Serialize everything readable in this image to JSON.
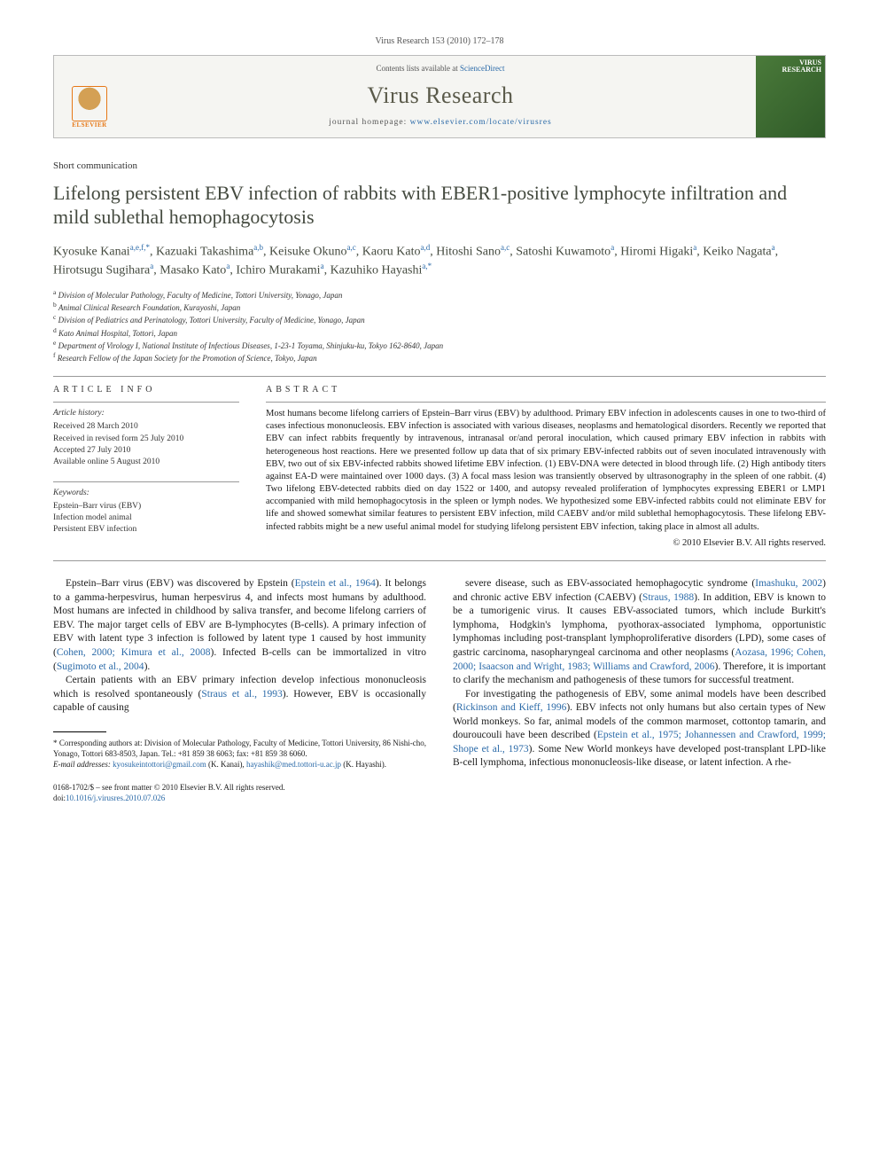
{
  "citation": "Virus Research 153 (2010) 172–178",
  "banner": {
    "contents_prefix": "Contents lists available at ",
    "contents_link": "ScienceDirect",
    "journal": "Virus Research",
    "homepage_prefix": "journal homepage: ",
    "homepage_url": "www.elsevier.com/locate/virusres",
    "publisher_name": "ELSEVIER",
    "cover_top": "VIRUS",
    "cover_bottom": "RESEARCH"
  },
  "article_type": "Short communication",
  "title": "Lifelong persistent EBV infection of rabbits with EBER1-positive lymphocyte infiltration and mild sublethal hemophagocytosis",
  "authors_html": "Kyosuke Kanai<sup>a,e,f,</sup><sup class=\"star\">*</sup>, Kazuaki Takashima<sup>a,b</sup>, Keisuke Okuno<sup>a,c</sup>, Kaoru Kato<sup>a,d</sup>, Hitoshi Sano<sup>a,c</sup>, Satoshi Kuwamoto<sup>a</sup>, Hiromi Higaki<sup>a</sup>, Keiko Nagata<sup>a</sup>, Hirotsugu Sugihara<sup>a</sup>, Masako Kato<sup>a</sup>, Ichiro Murakami<sup>a</sup>, Kazuhiko Hayashi<sup>a,</sup><sup class=\"star\">*</sup>",
  "affiliations": [
    "a Division of Molecular Pathology, Faculty of Medicine, Tottori University, Yonago, Japan",
    "b Animal Clinical Research Foundation, Kurayoshi, Japan",
    "c Division of Pediatrics and Perinatology, Tottori University, Faculty of Medicine, Yonago, Japan",
    "d Kato Animal Hospital, Tottori, Japan",
    "e Department of Virology I, National Institute of Infectious Diseases, 1-23-1 Toyama, Shinjuku-ku, Tokyo 162-8640, Japan",
    "f Research Fellow of the Japan Society for the Promotion of Science, Tokyo, Japan"
  ],
  "article_info": {
    "head": "ARTICLE INFO",
    "history_head": "Article history:",
    "history": [
      "Received 28 March 2010",
      "Received in revised form 25 July 2010",
      "Accepted 27 July 2010",
      "Available online 5 August 2010"
    ],
    "keywords_head": "Keywords:",
    "keywords": [
      "Epstein–Barr virus (EBV)",
      "Infection model animal",
      "Persistent EBV infection"
    ]
  },
  "abstract": {
    "head": "ABSTRACT",
    "text": "Most humans become lifelong carriers of Epstein–Barr virus (EBV) by adulthood. Primary EBV infection in adolescents causes in one to two-third of cases infectious mononucleosis. EBV infection is associated with various diseases, neoplasms and hematological disorders. Recently we reported that EBV can infect rabbits frequently by intravenous, intranasal or/and peroral inoculation, which caused primary EBV infection in rabbits with heterogeneous host reactions. Here we presented follow up data that of six primary EBV-infected rabbits out of seven inoculated intravenously with EBV, two out of six EBV-infected rabbits showed lifetime EBV infection. (1) EBV-DNA were detected in blood through life. (2) High antibody titers against EA-D were maintained over 1000 days. (3) A focal mass lesion was transiently observed by ultrasonography in the spleen of one rabbit. (4) Two lifelong EBV-detected rabbits died on day 1522 or 1400, and autopsy revealed proliferation of lymphocytes expressing EBER1 or LMP1 accompanied with mild hemophagocytosis in the spleen or lymph nodes. We hypothesized some EBV-infected rabbits could not eliminate EBV for life and showed somewhat similar features to persistent EBV infection, mild CAEBV and/or mild sublethal hemophagocytosis. These lifelong EBV-infected rabbits might be a new useful animal model for studying lifelong persistent EBV infection, taking place in almost all adults.",
    "copyright": "© 2010 Elsevier B.V. All rights reserved."
  },
  "body": {
    "left": [
      "Epstein–Barr virus (EBV) was discovered by Epstein (<a class=\"ref\" href=\"#\">Epstein et al., 1964</a>). It belongs to a gamma-herpesvirus, human herpesvirus 4, and infects most humans by adulthood. Most humans are infected in childhood by saliva transfer, and become lifelong carriers of EBV. The major target cells of EBV are B-lymphocytes (B-cells). A primary infection of EBV with latent type 3 infection is followed by latent type 1 caused by host immunity (<a class=\"ref\" href=\"#\">Cohen, 2000; Kimura et al., 2008</a>). Infected B-cells can be immortalized in vitro (<a class=\"ref\" href=\"#\">Sugimoto et al., 2004</a>).",
      "Certain patients with an EBV primary infection develop infectious mononucleosis which is resolved spontaneously (<a class=\"ref\" href=\"#\">Straus et al., 1993</a>). However, EBV is occasionally capable of causing"
    ],
    "right": [
      "severe disease, such as EBV-associated hemophagocytic syndrome (<a class=\"ref\" href=\"#\">Imashuku, 2002</a>) and chronic active EBV infection (CAEBV) (<a class=\"ref\" href=\"#\">Straus, 1988</a>). In addition, EBV is known to be a tumorigenic virus. It causes EBV-associated tumors, which include Burkitt's lymphoma, Hodgkin's lymphoma, pyothorax-associated lymphoma, opportunistic lymphomas including post-transplant lymphoproliferative disorders (LPD), some cases of gastric carcinoma, nasopharyngeal carcinoma and other neoplasms (<a class=\"ref\" href=\"#\">Aozasa, 1996; Cohen, 2000; Isaacson and Wright, 1983; Williams and Crawford, 2006</a>). Therefore, it is important to clarify the mechanism and pathogenesis of these tumors for successful treatment.",
      "For investigating the pathogenesis of EBV, some animal models have been described (<a class=\"ref\" href=\"#\">Rickinson and Kieff, 1996</a>). EBV infects not only humans but also certain types of New World monkeys. So far, animal models of the common marmoset, cottontop tamarin, and douroucouli have been described (<a class=\"ref\" href=\"#\">Epstein et al., 1975; Johannessen and Crawford, 1999; Shope et al., 1973</a>). Some New World monkeys have developed post-transplant LPD-like B-cell lymphoma, infectious mononucleosis-like disease, or latent infection. A rhe-"
    ]
  },
  "footnotes": {
    "corresponding": "* Corresponding authors at: Division of Molecular Pathology, Faculty of Medicine, Tottori University, 86 Nishi-cho, Yonago, Tottori 683-8503, Japan. Tel.: +81 859 38 6063; fax: +81 859 38 6060.",
    "email_label": "E-mail addresses:",
    "emails": [
      {
        "addr": "kyosukeintottori@gmail.com",
        "who": "(K. Kanai)"
      },
      {
        "addr": "hayashik@med.tottori-u.ac.jp",
        "who": "(K. Hayashi)"
      }
    ]
  },
  "footer": {
    "issn": "0168-1702/$ – see front matter © 2010 Elsevier B.V. All rights reserved.",
    "doi_label": "doi:",
    "doi": "10.1016/j.virusres.2010.07.026"
  },
  "colors": {
    "link": "#2b6aa8",
    "title": "#444a3f",
    "accent": "#e67817"
  }
}
